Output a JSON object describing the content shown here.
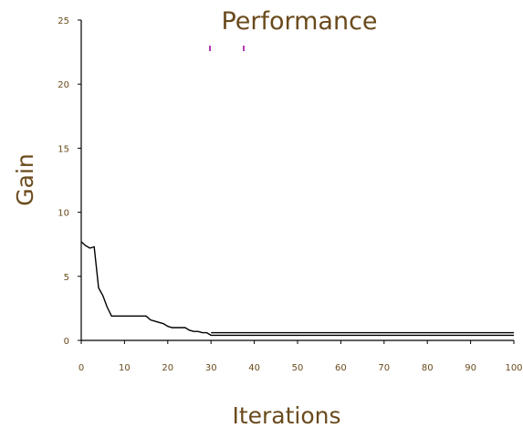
{
  "chart_data": {
    "type": "line",
    "title": "Performance",
    "xlabel": "Iterations",
    "ylabel": "Gain",
    "xlim": [
      0,
      100
    ],
    "ylim": [
      0,
      25
    ],
    "xticks": [
      0,
      10,
      20,
      30,
      40,
      50,
      60,
      70,
      80,
      90,
      100
    ],
    "yticks": [
      0,
      5,
      10,
      15,
      20,
      25
    ],
    "grid": false,
    "legend_color": "#b03ab0",
    "series": [
      {
        "color": "#000000",
        "x": [
          0,
          1,
          2,
          3,
          4,
          5,
          6,
          7,
          8,
          10,
          12,
          14,
          15,
          16,
          17,
          18,
          19,
          20,
          21,
          22,
          23,
          24,
          25,
          26,
          27,
          28,
          29,
          30,
          40,
          50,
          60,
          70,
          80,
          90,
          100
        ],
        "y": [
          7.7,
          7.4,
          7.2,
          7.3,
          4.1,
          3.5,
          2.6,
          1.9,
          1.9,
          1.9,
          1.9,
          1.9,
          1.9,
          1.6,
          1.5,
          1.4,
          1.3,
          1.1,
          1.0,
          1.0,
          1.0,
          1.0,
          0.8,
          0.7,
          0.7,
          0.6,
          0.6,
          0.4,
          0.4,
          0.4,
          0.4,
          0.4,
          0.4,
          0.4,
          0.4
        ]
      },
      {
        "color": "#000000",
        "x": [
          30,
          40,
          50,
          60,
          70,
          80,
          90,
          100
        ],
        "y": [
          0.6,
          0.6,
          0.6,
          0.6,
          0.6,
          0.6,
          0.6,
          0.6
        ]
      }
    ]
  }
}
